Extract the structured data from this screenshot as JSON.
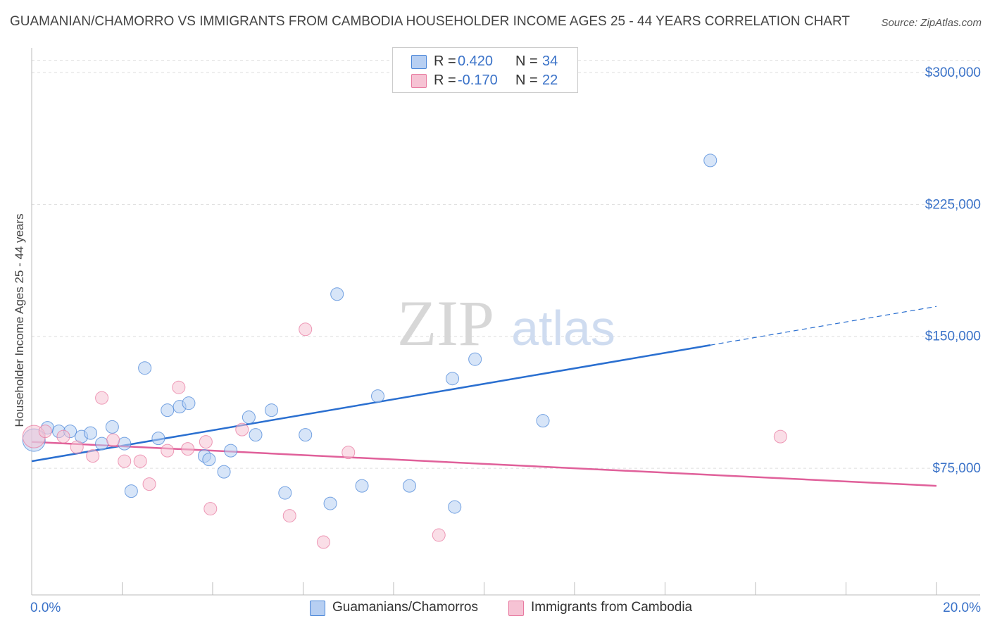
{
  "title": "GUAMANIAN/CHAMORRO VS IMMIGRANTS FROM CAMBODIA HOUSEHOLDER INCOME AGES 25 - 44 YEARS CORRELATION CHART",
  "source": "Source: ZipAtlas.com",
  "watermark": {
    "zip": "ZIP",
    "atlas": "atlas"
  },
  "colors": {
    "blue": "#4a86d8",
    "blue_fill": "#b7cff2",
    "blue_line": "#2a6fd0",
    "pink": "#e87aa0",
    "pink_fill": "#f6c3d4",
    "pink_line": "#e0609a",
    "axis_text": "#3a72c8",
    "grid": "#dddddd"
  },
  "legend": {
    "rows": [
      {
        "r_label": "R =",
        "r_value": "0.420",
        "n_label": "N =",
        "n_value": "34"
      },
      {
        "r_label": "R =",
        "r_value": "-0.170",
        "n_label": "N =",
        "n_value": "22"
      }
    ]
  },
  "chart_data": {
    "type": "scatter",
    "title": "GUAMANIAN/CHAMORRO VS IMMIGRANTS FROM CAMBODIA HOUSEHOLDER INCOME AGES 25 - 44 YEARS CORRELATION CHART",
    "xlabel": "",
    "ylabel": "Householder Income Ages 25 - 44 years",
    "xlim": [
      0,
      20
    ],
    "ylim": [
      3000,
      310000
    ],
    "x_tick_labels": [
      "0.0%",
      "20.0%"
    ],
    "y_ticks": [
      75000,
      150000,
      225000,
      300000
    ],
    "y_tick_labels": [
      "$75,000",
      "$150,000",
      "$225,000",
      "$300,000"
    ],
    "grid": true,
    "legend_position": "bottom",
    "series": [
      {
        "name": "Guamanians/Chamorros",
        "color": "#4a86d8",
        "r": 0.42,
        "n": 34,
        "points": [
          [
            0.05,
            91000
          ],
          [
            0.35,
            98000
          ],
          [
            0.6,
            96000
          ],
          [
            0.85,
            96000
          ],
          [
            1.1,
            93000
          ],
          [
            1.3,
            95000
          ],
          [
            1.55,
            89000
          ],
          [
            1.78,
            98500
          ],
          [
            2.05,
            89000
          ],
          [
            2.2,
            62000
          ],
          [
            2.5,
            132000
          ],
          [
            2.8,
            92000
          ],
          [
            3.0,
            108000
          ],
          [
            3.27,
            110000
          ],
          [
            3.47,
            112000
          ],
          [
            3.82,
            82000
          ],
          [
            3.92,
            80000
          ],
          [
            4.25,
            73000
          ],
          [
            4.4,
            85000
          ],
          [
            4.8,
            104000
          ],
          [
            4.95,
            94000
          ],
          [
            5.3,
            108000
          ],
          [
            5.6,
            61000
          ],
          [
            6.05,
            94000
          ],
          [
            6.6,
            55000
          ],
          [
            6.75,
            174000
          ],
          [
            7.3,
            65000
          ],
          [
            7.65,
            116000
          ],
          [
            8.35,
            65000
          ],
          [
            9.3,
            126000
          ],
          [
            9.35,
            53000
          ],
          [
            9.8,
            137000
          ],
          [
            11.3,
            102000
          ],
          [
            15.0,
            250000
          ]
        ],
        "trend": {
          "x_start": 0,
          "y_start": 79000,
          "x_solid_end": 15.0,
          "y_solid_end": 145000,
          "x_end": 20.0,
          "y_end": 167000
        }
      },
      {
        "name": "Immigrants from Cambodia",
        "color": "#e87aa0",
        "r": -0.17,
        "n": 22,
        "points": [
          [
            0.05,
            93000
          ],
          [
            0.3,
            96000
          ],
          [
            0.7,
            93000
          ],
          [
            1.0,
            87000
          ],
          [
            1.35,
            82000
          ],
          [
            1.55,
            115000
          ],
          [
            1.8,
            91000
          ],
          [
            2.05,
            79000
          ],
          [
            2.4,
            79000
          ],
          [
            2.6,
            66000
          ],
          [
            3.0,
            85000
          ],
          [
            3.25,
            121000
          ],
          [
            3.45,
            86000
          ],
          [
            3.85,
            90000
          ],
          [
            3.95,
            52000
          ],
          [
            4.65,
            97000
          ],
          [
            5.7,
            48000
          ],
          [
            6.05,
            154000
          ],
          [
            6.45,
            33000
          ],
          [
            7.0,
            84000
          ],
          [
            9.0,
            37000
          ],
          [
            16.55,
            93000
          ]
        ],
        "trend": {
          "x_start": 0,
          "y_start": 90000,
          "x_end": 20.0,
          "y_end": 65000
        }
      }
    ]
  }
}
